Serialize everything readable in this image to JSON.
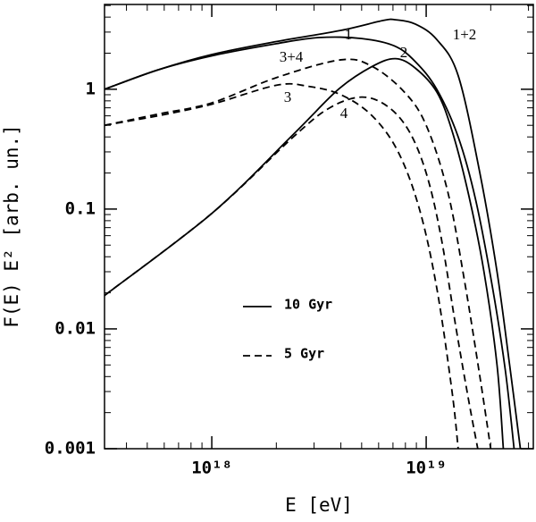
{
  "chart_data": {
    "type": "line",
    "xlabel": "E [eV]",
    "ylabel": "F(E) E² [arb. un.]",
    "xscale": "log",
    "yscale": "log",
    "xlim": [
      3.16e+17,
      3.16e+19
    ],
    "ylim": [
      0.001,
      5.1
    ],
    "xticks": [
      {
        "value": 1e+18,
        "label": "10¹⁸"
      },
      {
        "value": 1e+19,
        "label": "10¹⁹"
      }
    ],
    "xminorticks": [
      4e+17,
      5e+17,
      6e+17,
      7e+17,
      8e+17,
      9e+17,
      2e+18,
      3e+18,
      4e+18,
      5e+18,
      6e+18,
      7e+18,
      8e+18,
      9e+18,
      2e+19,
      3e+19
    ],
    "yticks": [
      0.001,
      0.01,
      0.1,
      1
    ],
    "yminorticks": [
      0.002,
      0.003,
      0.004,
      0.005,
      0.006,
      0.007,
      0.008,
      0.009,
      0.02,
      0.03,
      0.04,
      0.05,
      0.06,
      0.07,
      0.08,
      0.09,
      0.2,
      0.3,
      0.4,
      0.5,
      0.6,
      0.7,
      0.8,
      0.9,
      2,
      3,
      4,
      5
    ],
    "legend": [
      {
        "label": "10 Gyr",
        "style": "solid"
      },
      {
        "label": "5 Gyr",
        "style": "dashed"
      }
    ],
    "series": [
      {
        "name": "1+2",
        "color": "#000000",
        "style": "solid",
        "x": [
          3.16e+17,
          5.6e+17,
          1e+18,
          2e+18,
          4e+18,
          6.3e+18,
          7.2e+18,
          8.9e+18,
          1.12e+19,
          1.41e+19,
          1.78e+19,
          2.14e+19,
          2.45e+19,
          2.75e+19
        ],
        "values": [
          1.0,
          1.45,
          1.95,
          2.5,
          3.1,
          3.75,
          3.8,
          3.5,
          2.6,
          1.3,
          0.2,
          0.03,
          0.005,
          0.001
        ]
      },
      {
        "name": "1",
        "color": "#000000",
        "style": "solid",
        "x": [
          3.16e+17,
          5.6e+17,
          1e+18,
          2e+18,
          3.16e+18,
          5e+18,
          7.1e+18,
          8.9e+18,
          1.12e+19,
          1.41e+19,
          1.7e+19,
          2.04e+19,
          2.34e+19,
          2.57e+19
        ],
        "values": [
          1.0,
          1.45,
          1.9,
          2.4,
          2.7,
          2.65,
          2.3,
          1.7,
          1.0,
          0.4,
          0.12,
          0.022,
          0.0045,
          0.001
        ]
      },
      {
        "name": "2",
        "color": "#000000",
        "style": "solid",
        "x": [
          3.16e+17,
          1e+18,
          2.4e+18,
          3.9e+18,
          5.6e+18,
          7.2e+18,
          8.9e+18,
          1.12e+19,
          1.32e+19,
          1.58e+19,
          1.86e+19,
          2.14e+19,
          2.29e+19
        ],
        "values": [
          0.019,
          0.092,
          0.42,
          1.0,
          1.55,
          1.8,
          1.5,
          0.95,
          0.45,
          0.13,
          0.03,
          0.005,
          0.001
        ]
      },
      {
        "name": "3+4",
        "color": "#000000",
        "style": "dashed",
        "x": [
          3.16e+17,
          5.6e+17,
          1e+18,
          2e+18,
          4e+18,
          5.6e+18,
          7.9e+18,
          1e+19,
          1.26e+19,
          1.51e+19,
          1.78e+19,
          2e+19
        ],
        "values": [
          0.5,
          0.62,
          0.77,
          1.25,
          1.76,
          1.55,
          0.95,
          0.5,
          0.14,
          0.025,
          0.004,
          0.001
        ]
      },
      {
        "name": "3",
        "color": "#000000",
        "style": "dashed",
        "x": [
          3.16e+17,
          5.6e+17,
          1e+18,
          2e+18,
          2.8e+18,
          4e+18,
          5.6e+18,
          7.4e+18,
          9.3e+18,
          1.12e+19,
          1.32e+19,
          1.41e+19
        ],
        "values": [
          0.5,
          0.6,
          0.75,
          1.08,
          1.06,
          0.9,
          0.6,
          0.3,
          0.1,
          0.022,
          0.003,
          0.001
        ]
      },
      {
        "name": "4",
        "color": "#000000",
        "style": "dashed",
        "x": [
          3.16e+17,
          1e+18,
          2.4e+18,
          3.55e+18,
          5e+18,
          6.6e+18,
          8.3e+18,
          1e+19,
          1.17e+19,
          1.38e+19,
          1.58e+19,
          1.74e+19
        ],
        "values": [
          0.019,
          0.092,
          0.4,
          0.7,
          0.86,
          0.72,
          0.45,
          0.2,
          0.06,
          0.01,
          0.0025,
          0.001
        ]
      }
    ]
  }
}
